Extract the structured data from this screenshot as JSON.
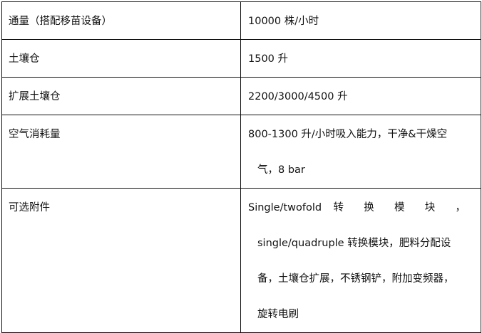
{
  "rows": [
    {
      "label": "通量（搭配移苗设备）",
      "lines": [
        "10000 株/小时"
      ]
    },
    {
      "label": "土壤仓",
      "lines": [
        "1500 升"
      ]
    },
    {
      "label": "扩展土壤仓",
      "lines": [
        "2200/3000/4500 升"
      ]
    },
    {
      "label": "空气消耗量",
      "lines": [
        "800-1300 升/小时吸入能力，干净&干燥空",
        "气，8 bar"
      ]
    },
    {
      "label": "可选附件",
      "lines": [
        "Single/twofold 转 换 模 块 ，",
        "single/quadruple 转换模块，肥料分配设",
        "备，土壤仓扩展，不锈钢铲，附加变频器，",
        "旋转电刷"
      ]
    }
  ]
}
